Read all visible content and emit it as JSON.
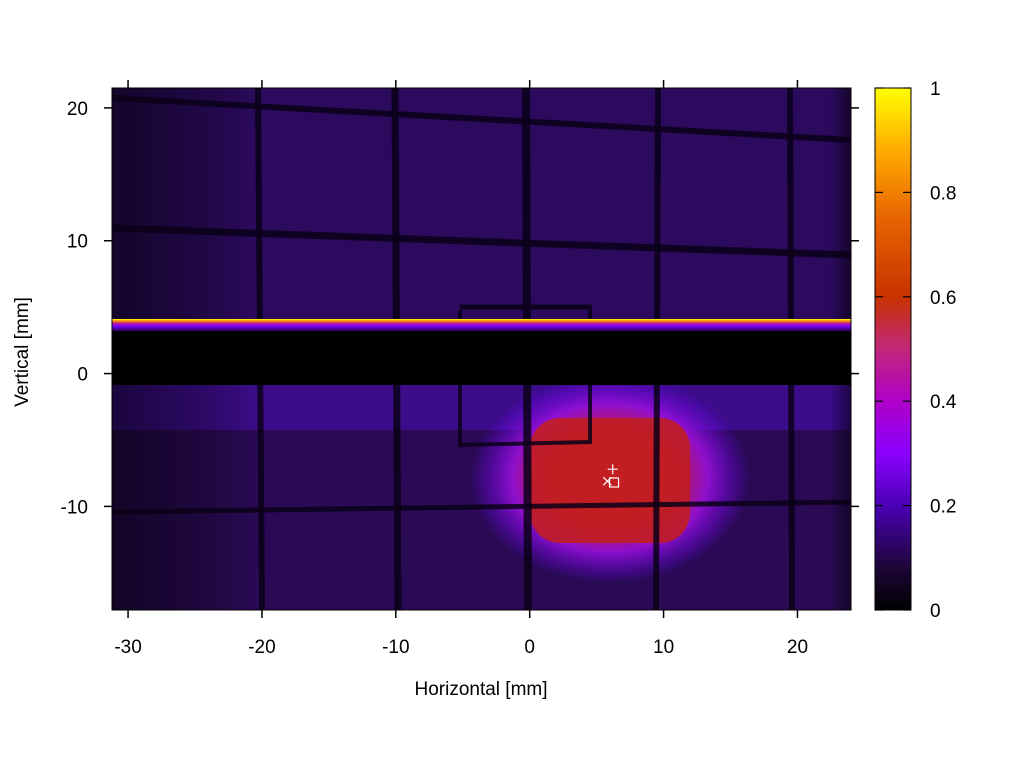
{
  "chart_data": {
    "type": "heatmap",
    "xlabel": "Horizontal [mm]",
    "ylabel": "Vertical [mm]",
    "xlim": [
      -31.2,
      24
    ],
    "ylim": [
      -17.8,
      21.5
    ],
    "xticks": [
      -30,
      -20,
      -10,
      0,
      10,
      20
    ],
    "yticks": [
      -10,
      0,
      10,
      20
    ],
    "colorbar": {
      "min": 0,
      "max": 1,
      "ticks": [
        0,
        0.2,
        0.4,
        0.6,
        0.8,
        1
      ],
      "palette": [
        "#000000",
        "#3a0a78",
        "#7a00ff",
        "#c01a8a",
        "#c81e00",
        "#ff9a00",
        "#ffff00"
      ]
    },
    "markers": [
      {
        "symbol": "+",
        "x": 6.2,
        "y": -7.2
      },
      {
        "symbol": "x",
        "x": 5.8,
        "y": -8.1
      },
      {
        "symbol": "square",
        "x": 6.3,
        "y": -8.2
      }
    ]
  }
}
